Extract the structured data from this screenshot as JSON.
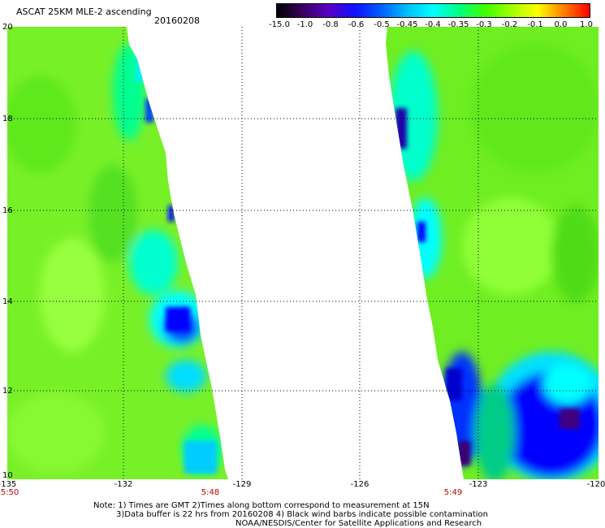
{
  "header": {
    "title": "ASCAT 25KM MLE-2 ascending",
    "date": "20160208"
  },
  "colorbar": {
    "labels": [
      "-15.0",
      "-1.0",
      "-0.8",
      "-0.6",
      "-0.5",
      "-0.45",
      "-0.4",
      "-0.35",
      "-0.3",
      "-0.2",
      "-0.1",
      "0.0",
      "1.0"
    ],
    "colors": [
      "#000000",
      "#3a0060",
      "#5a00c8",
      "#1010ff",
      "#0060ff",
      "#00c0ff",
      "#00ffff",
      "#00ff80",
      "#40ff00",
      "#a0ff00",
      "#ffff00",
      "#ff8000",
      "#ff0000"
    ]
  },
  "axes": {
    "lat_ticks": [
      "20",
      "18",
      "16",
      "14",
      "12",
      "10"
    ],
    "lon_ticks": [
      "-135",
      "-132",
      "-129",
      "-126",
      "-123",
      "-120"
    ],
    "time_labels": [
      {
        "text": "5:50",
        "lon": -135
      },
      {
        "text": "5:48",
        "lon": -130.2
      },
      {
        "text": "5:49",
        "lon": -123.6
      }
    ]
  },
  "notes": {
    "line1": "Note: 1) Times are GMT 2)Times along bottom correspond to measurement at 15N",
    "line2": "3)Data buffer is 22 hrs from 20160208 4) Black wind barbs indicate possible contamination",
    "line3": "NOAA/NESDIS/Center for Satellite Applications and Research"
  },
  "map_data": {
    "lat_range": [
      10,
      20
    ],
    "lon_range": [
      -135,
      -120
    ],
    "colors": {
      "green": "#66ee22",
      "lime": "#88ff33",
      "mint": "#00ff99",
      "cyan": "#00ffff",
      "sky": "#00aaff",
      "blue": "#0000ff",
      "navy": "#1010cc",
      "purple": "#4b0082"
    }
  }
}
